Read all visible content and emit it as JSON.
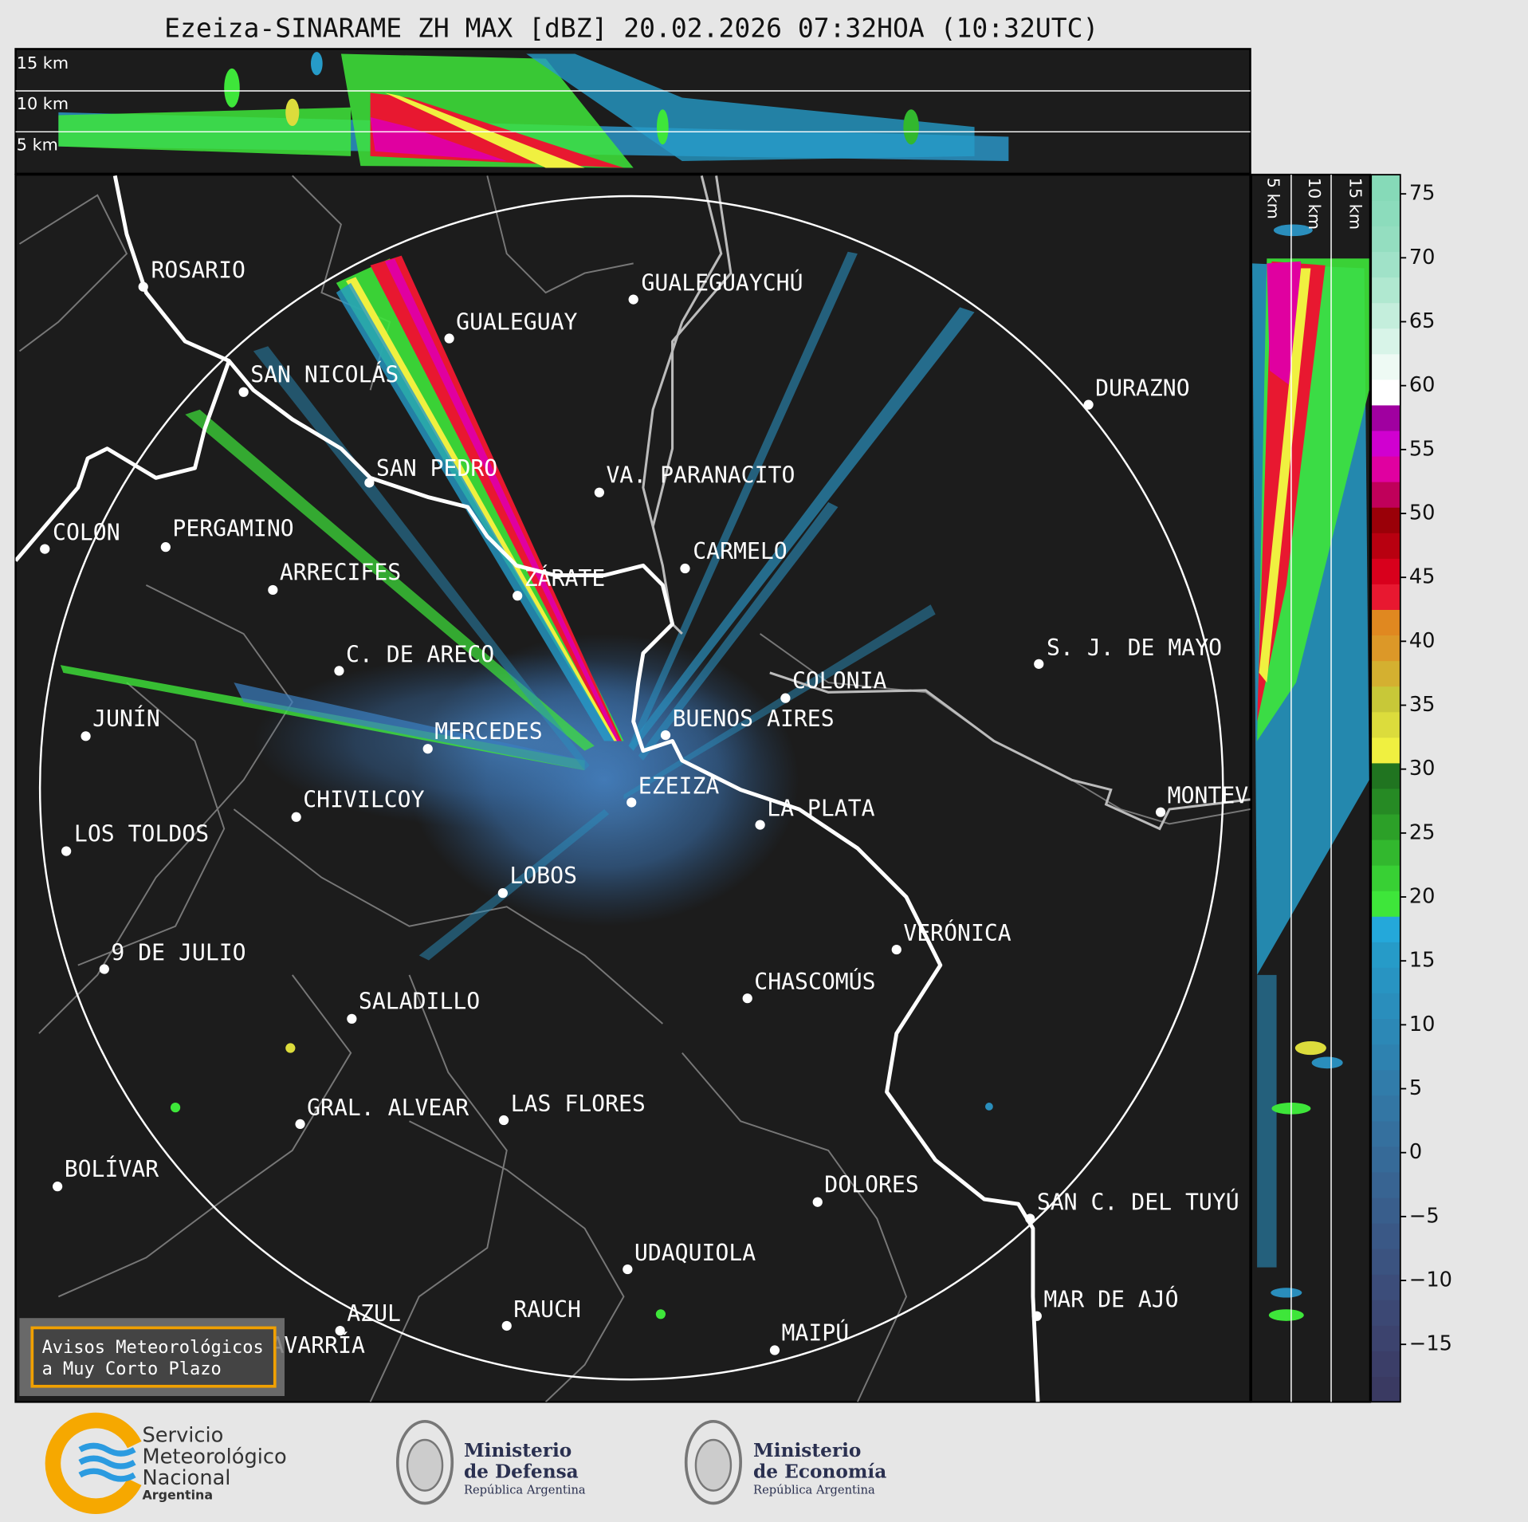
{
  "header": {
    "title": "Ezeiza-SINARAME ZH MAX [dBZ] 20.02.2026 07:32HOA (10:32UTC)"
  },
  "top_panel": {
    "height_labels": [
      "15 km",
      "10 km",
      "5 km"
    ]
  },
  "side_panel": {
    "height_labels": [
      "5 km",
      "10 km",
      "15 km"
    ]
  },
  "map": {
    "cities": [
      "ROSARIO",
      "GUALEGUAYCHÚ",
      "GUALEGUAY",
      "SAN NICOLÁS",
      "DURAZNO",
      "SAN PEDRO",
      "VA. PARANACITO",
      "COLON",
      "PERGAMINO",
      "CARMELO",
      "ARRECIFES",
      "ZÁRATE",
      "S. J. DE MAYO",
      "C. DE ARECO",
      "COLONIA",
      "BUENOS AIRES",
      "JUNÍN",
      "MERCEDES",
      "EZEIZA",
      "MONTEV",
      "CHIVILCOY",
      "LA PLATA",
      "LOS TOLDOS",
      "LOBOS",
      "VERÓNICA",
      "9 DE JULIO",
      "CHASCOMÚS",
      "SALADILLO",
      "GRAL. ALVEAR",
      "LAS FLORES",
      "BOLÍVAR",
      "DOLORES",
      "SAN C. DEL TUYÚ",
      "UDAQUIOLA",
      "MAR DE AJÓ",
      "AZUL",
      "RAUCH",
      "OLAVARRÍA",
      "MAIPÚ"
    ]
  },
  "colorbar": {
    "lim": [
      -19.5,
      76.5
    ],
    "ticks": [
      75,
      70,
      65,
      60,
      55,
      50,
      45,
      40,
      35,
      30,
      25,
      20,
      15,
      10,
      5,
      0,
      {
        "value": -5,
        "label": "−5"
      },
      {
        "value": -10,
        "label": "−10"
      },
      {
        "value": -15,
        "label": "−15"
      }
    ],
    "colors": [
      "#3a3a62",
      "#3b3e68",
      "#3c436e",
      "#3c4874",
      "#3c4d7a",
      "#3b5380",
      "#3a5886",
      "#395e8c",
      "#386492",
      "#366a98",
      "#35709e",
      "#3376a4",
      "#317caa",
      "#2e82b0",
      "#2c88b6",
      "#2a8ebc",
      "#2894c2",
      "#269bc8",
      "#24a8da",
      "#3ee63a",
      "#38d034",
      "#32b82e",
      "#2ca028",
      "#268a24",
      "#207420",
      "#f0f040",
      "#dcdc3c",
      "#c8c838",
      "#d4b030",
      "#dc9828",
      "#e08820",
      "#e81830",
      "#d8001c",
      "#b80010",
      "#9a0008",
      "#c0005a",
      "#e000a0",
      "#d000d0",
      "#a000a0",
      "#ffffff",
      "#eefaf4",
      "#d8f4e8",
      "#c4eedc",
      "#b0e8d0",
      "#a0e2c8",
      "#94dec0",
      "#8cdcbc",
      "#86dab8"
    ]
  },
  "warning_box": {
    "lines": [
      "Avisos Meteorológicos",
      "a Muy Corto Plazo"
    ]
  },
  "logos": {
    "smn": [
      "Servicio",
      "Meteorológico",
      "Nacional",
      "Argentina"
    ],
    "defensa": [
      "Ministerio",
      "de Defensa",
      "República Argentina"
    ],
    "economia": [
      "Ministerio",
      "de Economía",
      "República Argentina"
    ]
  }
}
